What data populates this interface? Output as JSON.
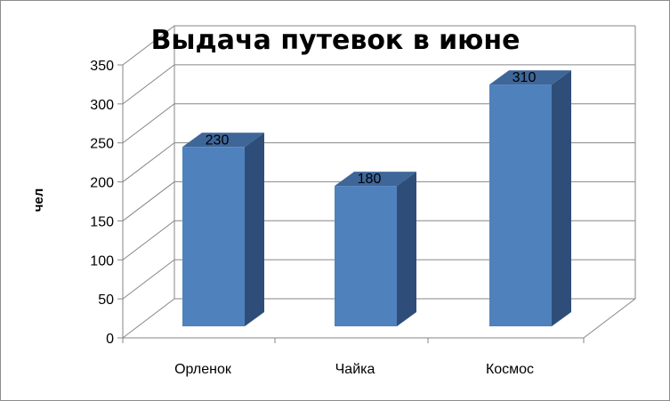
{
  "chart_data": {
    "type": "bar",
    "title": "Выдача путевок в июне",
    "xlabel": "",
    "ylabel": "чел",
    "categories": [
      "Орленок",
      "Чайка",
      "Космос"
    ],
    "values": [
      230,
      180,
      310
    ],
    "data_labels": [
      "230",
      "180",
      "310"
    ],
    "ylim": [
      0,
      350
    ],
    "y_ticks": [
      0,
      50,
      100,
      150,
      200,
      250,
      300,
      350
    ],
    "grid": true,
    "legend": "none",
    "style": "3d-column",
    "colors": {
      "bar_front": "#4f81bd",
      "bar_side": "#2e4e79",
      "bar_top": "#3e6699",
      "grid": "#868686"
    }
  }
}
